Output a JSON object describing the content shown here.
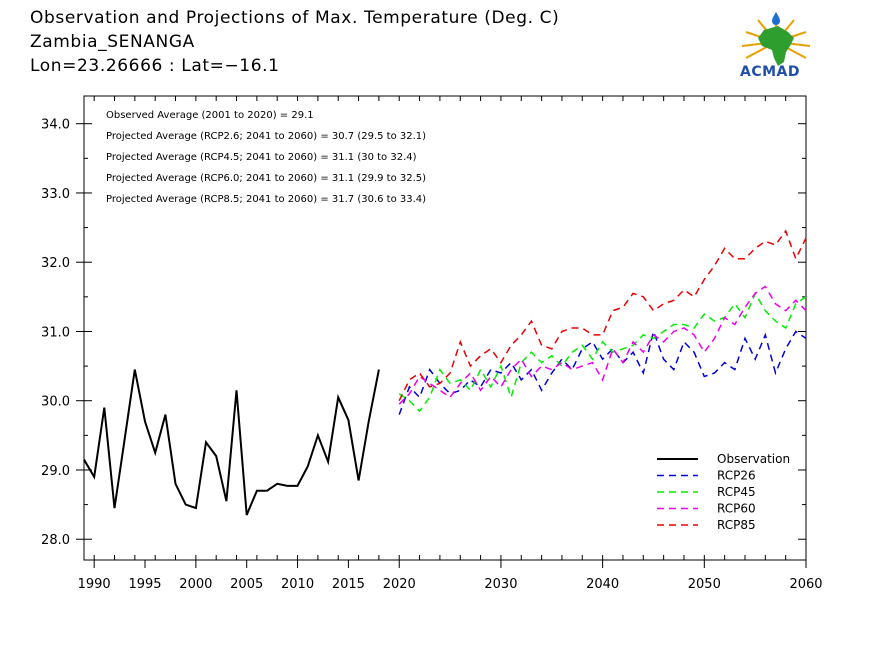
{
  "title": {
    "line1": "Observation and Projections of Max. Temperature (Deg. C)",
    "line2": "Zambia_SENANGA",
    "line3": "Lon=23.26666 : Lat=−16.1"
  },
  "logo": {
    "text": "ACMAD"
  },
  "annotations": [
    "Observed Average (2001 to 2020) = 29.1",
    "Projected Average (RCP2.6; 2041 to 2060) = 30.7 (29.5 to 32.1)",
    "Projected Average (RCP4.5; 2041 to 2060) = 31.1 (30 to 32.4)",
    "Projected Average (RCP6.0; 2041 to 2060) = 31.1 (29.9 to 32.5)",
    "Projected Average (RCP8.5; 2041 to 2060) = 31.7 (30.6 to 33.4)"
  ],
  "chart_data": {
    "type": "line",
    "xlim": [
      1989,
      2060
    ],
    "ylim": [
      27.7,
      34.4
    ],
    "yticks": [
      28.0,
      29.0,
      30.0,
      31.0,
      32.0,
      33.0,
      34.0
    ],
    "ytick_labels": [
      "28.0",
      "29.0",
      "30.0",
      "31.0",
      "32.0",
      "33.0",
      "34.0"
    ],
    "xticks_left": [
      1990,
      1995,
      2000,
      2005,
      2010,
      2015,
      2020
    ],
    "xticks_right": [
      2020,
      2030,
      2040,
      2050,
      2060
    ],
    "legend": [
      "Observation",
      "RCP26",
      "RCP45",
      "RCP60",
      "RCP85"
    ],
    "series": [
      {
        "name": "Observation",
        "color": "#000000",
        "dashed": false,
        "x": [
          1989,
          1990,
          1991,
          1992,
          1993,
          1994,
          1995,
          1996,
          1997,
          1998,
          1999,
          2000,
          2001,
          2002,
          2003,
          2004,
          2005,
          2006,
          2007,
          2008,
          2009,
          2010,
          2011,
          2012,
          2013,
          2014,
          2015,
          2016,
          2017,
          2018,
          2019,
          2020
        ],
        "y": [
          29.15,
          28.9,
          29.9,
          28.45,
          29.45,
          30.45,
          29.7,
          29.25,
          29.8,
          28.8,
          28.5,
          28.45,
          29.4,
          29.2,
          28.55,
          30.15,
          28.35,
          28.7,
          28.7,
          28.8,
          28.77,
          28.77,
          29.05,
          29.5,
          29.12,
          30.05,
          29.72,
          28.85,
          29.7,
          30.45,
          null,
          null
        ]
      },
      {
        "name": "RCP26",
        "color": "#0000dd",
        "dashed": true,
        "x": [
          2020,
          2021,
          2022,
          2023,
          2024,
          2025,
          2026,
          2027,
          2028,
          2029,
          2030,
          2031,
          2032,
          2033,
          2034,
          2035,
          2036,
          2037,
          2038,
          2039,
          2040,
          2041,
          2042,
          2043,
          2044,
          2045,
          2046,
          2047,
          2048,
          2049,
          2050,
          2051,
          2052,
          2053,
          2054,
          2055,
          2056,
          2057,
          2058,
          2059,
          2060
        ],
        "y": [
          29.8,
          30.2,
          30.05,
          30.45,
          30.25,
          30.1,
          30.15,
          30.3,
          30.2,
          30.45,
          30.4,
          30.55,
          30.3,
          30.45,
          30.15,
          30.4,
          30.6,
          30.45,
          30.75,
          30.85,
          30.6,
          30.75,
          30.55,
          30.7,
          30.4,
          31.0,
          30.6,
          30.45,
          30.85,
          30.7,
          30.35,
          30.4,
          30.55,
          30.45,
          30.9,
          30.6,
          30.95,
          30.4,
          30.75,
          31.0,
          30.9
        ]
      },
      {
        "name": "RCP45",
        "color": "#00ee00",
        "dashed": true,
        "x": [
          2020,
          2021,
          2022,
          2023,
          2024,
          2025,
          2026,
          2027,
          2028,
          2029,
          2030,
          2031,
          2032,
          2033,
          2034,
          2035,
          2036,
          2037,
          2038,
          2039,
          2040,
          2041,
          2042,
          2043,
          2044,
          2045,
          2046,
          2047,
          2048,
          2049,
          2050,
          2051,
          2052,
          2053,
          2054,
          2055,
          2056,
          2057,
          2058,
          2059,
          2060
        ],
        "y": [
          30.1,
          30.0,
          29.85,
          30.05,
          30.45,
          30.25,
          30.3,
          30.15,
          30.45,
          30.2,
          30.5,
          30.05,
          30.55,
          30.7,
          30.55,
          30.65,
          30.5,
          30.7,
          30.8,
          30.6,
          30.85,
          30.7,
          30.75,
          30.8,
          30.95,
          30.9,
          31.0,
          31.1,
          31.1,
          31.05,
          31.25,
          31.15,
          31.2,
          31.4,
          31.2,
          31.55,
          31.3,
          31.15,
          31.05,
          31.4,
          31.5
        ]
      },
      {
        "name": "RCP60",
        "color": "#ee00ee",
        "dashed": true,
        "x": [
          2020,
          2021,
          2022,
          2023,
          2024,
          2025,
          2026,
          2027,
          2028,
          2029,
          2030,
          2031,
          2032,
          2033,
          2034,
          2035,
          2036,
          2037,
          2038,
          2039,
          2040,
          2041,
          2042,
          2043,
          2044,
          2045,
          2046,
          2047,
          2048,
          2049,
          2050,
          2051,
          2052,
          2053,
          2054,
          2055,
          2056,
          2057,
          2058,
          2059,
          2060
        ],
        "y": [
          29.95,
          30.1,
          30.35,
          30.25,
          30.15,
          30.05,
          30.25,
          30.4,
          30.15,
          30.35,
          30.2,
          30.45,
          30.6,
          30.35,
          30.5,
          30.45,
          30.55,
          30.45,
          30.5,
          30.55,
          30.3,
          30.75,
          30.55,
          30.85,
          30.7,
          30.95,
          30.85,
          31.0,
          31.05,
          30.95,
          30.7,
          30.9,
          31.2,
          31.1,
          31.35,
          31.55,
          31.65,
          31.4,
          31.3,
          31.45,
          31.3
        ]
      },
      {
        "name": "RCP85",
        "color": "#ee0000",
        "dashed": true,
        "x": [
          2020,
          2021,
          2022,
          2023,
          2024,
          2025,
          2026,
          2027,
          2028,
          2029,
          2030,
          2031,
          2032,
          2033,
          2034,
          2035,
          2036,
          2037,
          2038,
          2039,
          2040,
          2041,
          2042,
          2043,
          2044,
          2045,
          2046,
          2047,
          2048,
          2049,
          2050,
          2051,
          2052,
          2053,
          2054,
          2055,
          2056,
          2057,
          2058,
          2059,
          2060
        ],
        "y": [
          30.0,
          30.3,
          30.4,
          30.2,
          30.25,
          30.4,
          30.85,
          30.5,
          30.65,
          30.75,
          30.55,
          30.8,
          30.95,
          31.15,
          30.8,
          30.75,
          31.0,
          31.05,
          31.05,
          30.95,
          30.95,
          31.3,
          31.35,
          31.55,
          31.5,
          31.3,
          31.4,
          31.45,
          31.6,
          31.5,
          31.75,
          31.95,
          32.2,
          32.05,
          32.05,
          32.2,
          32.3,
          32.25,
          32.45,
          32.05,
          32.35
        ]
      }
    ]
  }
}
